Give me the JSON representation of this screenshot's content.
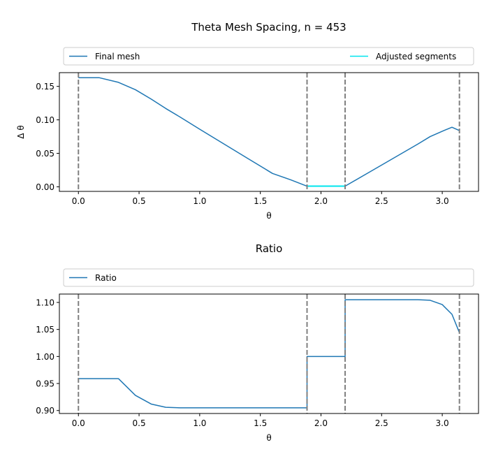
{
  "chart_data": [
    {
      "type": "line",
      "title": "Theta Mesh Spacing, n = 453",
      "xlabel": "θ",
      "ylabel": "Δ θ",
      "xlim": [
        -0.157,
        3.299
      ],
      "ylim": [
        -0.0068,
        0.1705
      ],
      "xticks": [
        0.0,
        0.5,
        1.0,
        1.5,
        2.0,
        2.5,
        3.0
      ],
      "xtick_labels": [
        "0.0",
        "0.5",
        "1.0",
        "1.5",
        "2.0",
        "2.5",
        "3.0"
      ],
      "yticks": [
        0.0,
        0.05,
        0.1,
        0.15
      ],
      "ytick_labels": [
        "0.00",
        "0.05",
        "0.10",
        "0.15"
      ],
      "legend": {
        "placement": "top",
        "entries": [
          "Final mesh",
          "Adjusted segments"
        ]
      },
      "vlines": [
        0.0,
        1.885,
        2.199,
        3.1416
      ],
      "series": [
        {
          "name": "Final mesh",
          "color": "#1f77b4",
          "x": [
            0.0,
            0.17,
            0.33,
            0.47,
            0.6,
            0.72,
            0.84,
            1.0,
            1.2,
            1.4,
            1.6,
            1.75,
            1.885,
            1.95,
            2.05,
            2.15,
            2.199,
            2.4,
            2.6,
            2.8,
            2.9,
            3.0,
            3.08,
            3.1416
          ],
          "y": [
            0.163,
            0.163,
            0.156,
            0.145,
            0.131,
            0.117,
            0.104,
            0.086,
            0.064,
            0.042,
            0.02,
            0.0105,
            0.001,
            0.001,
            0.001,
            0.001,
            0.001,
            0.022,
            0.043,
            0.064,
            0.075,
            0.083,
            0.089,
            0.084
          ]
        },
        {
          "name": "Adjusted segments",
          "color": "#00e5ee",
          "x": [
            1.885,
            2.199
          ],
          "y": [
            0.001,
            0.001
          ]
        }
      ]
    },
    {
      "type": "line",
      "title": "Ratio",
      "xlabel": "θ",
      "ylabel": "",
      "xlim": [
        -0.157,
        3.299
      ],
      "ylim": [
        0.8945,
        1.1155
      ],
      "xticks": [
        0.0,
        0.5,
        1.0,
        1.5,
        2.0,
        2.5,
        3.0
      ],
      "xtick_labels": [
        "0.0",
        "0.5",
        "1.0",
        "1.5",
        "2.0",
        "2.5",
        "3.0"
      ],
      "yticks": [
        0.9,
        0.95,
        1.0,
        1.05,
        1.1
      ],
      "ytick_labels": [
        "0.90",
        "0.95",
        "1.00",
        "1.05",
        "1.10"
      ],
      "legend": {
        "placement": "top",
        "entries": [
          "Ratio"
        ]
      },
      "vlines": [
        0.0,
        1.885,
        2.199,
        3.1416
      ],
      "series": [
        {
          "name": "Ratio",
          "color": "#1f77b4",
          "x": [
            0.0,
            0.17,
            0.33,
            0.47,
            0.6,
            0.72,
            0.84,
            1.0,
            1.4,
            1.885,
            1.885,
            2.199,
            2.199,
            2.5,
            2.8,
            2.9,
            3.0,
            3.08,
            3.1416
          ],
          "y": [
            0.959,
            0.959,
            0.959,
            0.928,
            0.912,
            0.906,
            0.905,
            0.905,
            0.905,
            0.905,
            1.0,
            1.0,
            1.105,
            1.105,
            1.105,
            1.104,
            1.096,
            1.078,
            1.044
          ]
        }
      ]
    }
  ]
}
